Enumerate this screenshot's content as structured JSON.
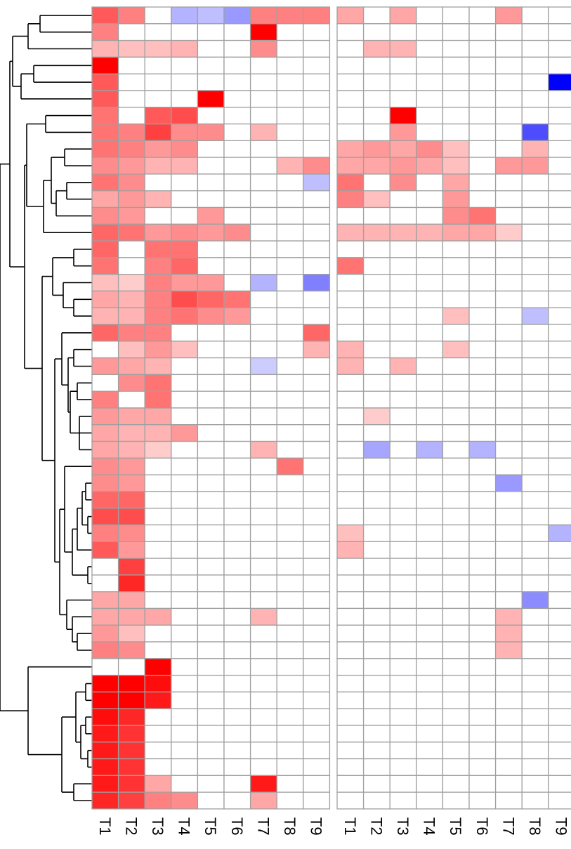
{
  "chart_data": {
    "type": "heatmap",
    "row_dendrogram": true,
    "grid": true,
    "colors": {
      "positive": "#ff0000",
      "negative": "#0000ff",
      "neutral": "#ffffff",
      "grid": "#a0a0a0"
    },
    "value_range": [
      -1,
      1
    ],
    "panels": [
      {
        "columns": [
          "T1",
          "T2",
          "T3",
          "T4",
          "T5",
          "T6",
          "T7",
          "T8",
          "T9"
        ],
        "values": [
          [
            0.65,
            0.5,
            0,
            -0.3,
            -0.25,
            -0.4,
            0.5,
            0.5,
            0.5
          ],
          [
            0.5,
            0,
            0,
            0,
            0,
            0,
            1,
            0,
            0
          ],
          [
            0.3,
            0.25,
            0.25,
            0.3,
            0,
            0,
            0.45,
            0,
            0
          ],
          [
            1,
            0,
            0,
            0,
            0,
            0,
            0,
            0,
            0
          ],
          [
            0.65,
            0,
            0,
            0,
            0,
            0,
            0,
            0,
            0
          ],
          [
            0.65,
            0,
            0,
            0,
            1,
            0,
            0,
            0,
            0
          ],
          [
            0.55,
            0,
            0.65,
            0.7,
            0,
            0,
            0,
            0,
            0
          ],
          [
            0.55,
            0.5,
            0.75,
            0.45,
            0.45,
            0,
            0.3,
            0,
            0
          ],
          [
            0.55,
            0.5,
            0.4,
            0.45,
            0,
            0,
            0,
            0,
            0
          ],
          [
            0.45,
            0.4,
            0.3,
            0.3,
            0,
            0,
            0,
            0.3,
            0.45
          ],
          [
            0.55,
            0.45,
            0,
            0,
            0,
            0,
            0,
            0,
            -0.25
          ],
          [
            0.35,
            0.4,
            0.3,
            0,
            0,
            0,
            0,
            0,
            0
          ],
          [
            0.45,
            0.4,
            0,
            0,
            0.4,
            0,
            0,
            0,
            0
          ],
          [
            0.6,
            0.55,
            0.4,
            0.45,
            0.4,
            0.45,
            0,
            0,
            0
          ],
          [
            0.6,
            0,
            0.55,
            0.55,
            0,
            0,
            0,
            0,
            0
          ],
          [
            0.55,
            0,
            0.5,
            0.6,
            0,
            0,
            0,
            0,
            0
          ],
          [
            0.25,
            0.2,
            0.5,
            0.4,
            0.4,
            0,
            -0.3,
            0,
            -0.5
          ],
          [
            0.35,
            0.3,
            0.5,
            0.7,
            0.6,
            0.55,
            0,
            0,
            0
          ],
          [
            0.3,
            0.3,
            0.5,
            0.55,
            0.45,
            0.4,
            0,
            0,
            0
          ],
          [
            0.6,
            0.5,
            0.5,
            0,
            0,
            0,
            0,
            0,
            0.6
          ],
          [
            0,
            0.25,
            0.4,
            0.25,
            0,
            0,
            0,
            0,
            0.3
          ],
          [
            0.4,
            0.35,
            0.3,
            0,
            0,
            0,
            -0.2,
            0,
            0
          ],
          [
            0,
            0.45,
            0.55,
            0,
            0,
            0,
            0,
            0,
            0
          ],
          [
            0.5,
            0,
            0.55,
            0,
            0,
            0,
            0,
            0,
            0
          ],
          [
            0.4,
            0.35,
            0.35,
            0,
            0,
            0,
            0,
            0,
            0
          ],
          [
            0.35,
            0.3,
            0.3,
            0.4,
            0,
            0,
            0,
            0,
            0
          ],
          [
            0.35,
            0.3,
            0.2,
            0,
            0,
            0,
            0.3,
            0,
            0
          ],
          [
            0.45,
            0.4,
            0,
            0,
            0,
            0,
            0,
            0.55,
            0
          ],
          [
            0.45,
            0.4,
            0,
            0,
            0,
            0,
            0,
            0,
            0
          ],
          [
            0.6,
            0.6,
            0,
            0,
            0,
            0,
            0,
            0,
            0
          ],
          [
            0.7,
            0.7,
            0,
            0,
            0,
            0,
            0,
            0,
            0
          ],
          [
            0.5,
            0.45,
            0,
            0,
            0,
            0,
            0,
            0,
            0
          ],
          [
            0.65,
            0.4,
            0,
            0,
            0,
            0,
            0,
            0,
            0
          ],
          [
            0,
            0.75,
            0,
            0,
            0,
            0,
            0,
            0,
            0
          ],
          [
            0,
            0.85,
            0,
            0,
            0,
            0,
            0,
            0,
            0
          ],
          [
            0.35,
            0.35,
            0,
            0,
            0,
            0,
            0,
            0,
            0
          ],
          [
            0.35,
            0.35,
            0.35,
            0,
            0,
            0,
            0.3,
            0,
            0
          ],
          [
            0.4,
            0.25,
            0,
            0,
            0,
            0,
            0,
            0,
            0
          ],
          [
            0.5,
            0.45,
            0,
            0,
            0,
            0,
            0,
            0,
            0
          ],
          [
            0,
            0,
            1,
            0,
            0,
            0,
            0,
            0,
            0
          ],
          [
            1,
            1,
            0.95,
            0,
            0,
            0,
            0,
            0,
            0
          ],
          [
            1,
            1,
            0.9,
            0,
            0,
            0,
            0,
            0,
            0
          ],
          [
            0.95,
            0.85,
            0,
            0,
            0,
            0,
            0,
            0,
            0
          ],
          [
            0.9,
            0.8,
            0,
            0,
            0,
            0,
            0,
            0,
            0
          ],
          [
            0.9,
            0.8,
            0,
            0,
            0,
            0,
            0,
            0,
            0
          ],
          [
            0.9,
            0.8,
            0,
            0,
            0,
            0,
            0,
            0,
            0
          ],
          [
            0.9,
            0.8,
            0.35,
            0,
            0,
            0,
            0.9,
            0,
            0
          ],
          [
            0.85,
            0.75,
            0.5,
            0.45,
            0,
            0,
            0.35,
            0,
            0
          ]
        ]
      },
      {
        "columns": [
          "T1",
          "T2",
          "T3",
          "T4",
          "T5",
          "T6",
          "T7",
          "T8",
          "T9"
        ],
        "values": [
          [
            0.35,
            0,
            0.35,
            0,
            0,
            0,
            0.4,
            0,
            0
          ],
          [
            0,
            0,
            0,
            0,
            0,
            0,
            0,
            0,
            0
          ],
          [
            0,
            0.3,
            0.3,
            0,
            0,
            0,
            0,
            0,
            0
          ],
          [
            0,
            0,
            0,
            0,
            0,
            0,
            0,
            0,
            0
          ],
          [
            0,
            0,
            0,
            0,
            0,
            0,
            0,
            0,
            -1
          ],
          [
            0,
            0,
            0,
            0,
            0,
            0,
            0,
            0,
            0
          ],
          [
            0,
            0,
            1,
            0,
            0,
            0,
            0,
            0,
            0
          ],
          [
            0,
            0,
            0.4,
            0,
            0,
            0,
            0,
            -0.7,
            0
          ],
          [
            0.35,
            0.4,
            0.35,
            0.45,
            0.25,
            0,
            0,
            0.3,
            0
          ],
          [
            0.35,
            0.35,
            0.4,
            0.35,
            0.25,
            0,
            0.4,
            0.4,
            0
          ],
          [
            0.55,
            0,
            0.45,
            0,
            0.35,
            0,
            0,
            0,
            0
          ],
          [
            0.5,
            0.25,
            0,
            0,
            0.4,
            0,
            0,
            0,
            0
          ],
          [
            0,
            0,
            0,
            0,
            0.45,
            0.55,
            0,
            0,
            0
          ],
          [
            0.3,
            0.3,
            0.3,
            0.3,
            0.35,
            0.35,
            0.2,
            0,
            0
          ],
          [
            0,
            0,
            0,
            0,
            0,
            0,
            0,
            0,
            0
          ],
          [
            0.55,
            0,
            0,
            0,
            0,
            0,
            0,
            0,
            0
          ],
          [
            0,
            0,
            0,
            0,
            0,
            0,
            0,
            0,
            0
          ],
          [
            0,
            0,
            0,
            0,
            0,
            0,
            0,
            0,
            0
          ],
          [
            0,
            0,
            0,
            0,
            0.25,
            0,
            0,
            -0.25,
            0
          ],
          [
            0,
            0,
            0,
            0,
            0,
            0,
            0,
            0,
            0
          ],
          [
            0.3,
            0,
            0,
            0,
            0.25,
            0,
            0,
            0,
            0
          ],
          [
            0.3,
            0,
            0.3,
            0,
            0,
            0,
            0,
            0,
            0
          ],
          [
            0,
            0,
            0,
            0,
            0,
            0,
            0,
            0,
            0
          ],
          [
            0,
            0,
            0,
            0,
            0,
            0,
            0,
            0,
            0
          ],
          [
            0,
            0.2,
            0,
            0,
            0,
            0,
            0,
            0,
            0
          ],
          [
            0,
            0,
            0,
            0,
            0,
            0,
            0,
            0,
            0
          ],
          [
            0,
            -0.35,
            0,
            -0.3,
            0,
            -0.3,
            0,
            0,
            0
          ],
          [
            0,
            0,
            0,
            0,
            0,
            0,
            0,
            0,
            0
          ],
          [
            0,
            0,
            0,
            0,
            0,
            0,
            -0.4,
            0,
            0
          ],
          [
            0,
            0,
            0,
            0,
            0,
            0,
            0,
            0,
            0
          ],
          [
            0,
            0,
            0,
            0,
            0,
            0,
            0,
            0,
            0
          ],
          [
            0.25,
            0,
            0,
            0,
            0,
            0,
            0,
            0,
            -0.3
          ],
          [
            0.3,
            0,
            0,
            0,
            0,
            0,
            0,
            0,
            0
          ],
          [
            0,
            0,
            0,
            0,
            0,
            0,
            0,
            0,
            0
          ],
          [
            0,
            0,
            0,
            0,
            0,
            0,
            0,
            0,
            0
          ],
          [
            0,
            0,
            0,
            0,
            0,
            0,
            0,
            -0.45,
            0
          ],
          [
            0,
            0,
            0,
            0,
            0,
            0,
            0.3,
            0,
            0
          ],
          [
            0,
            0,
            0,
            0,
            0,
            0,
            0.3,
            0,
            0
          ],
          [
            0,
            0,
            0,
            0,
            0,
            0,
            0.3,
            0,
            0
          ],
          [
            0,
            0,
            0,
            0,
            0,
            0,
            0,
            0,
            0
          ],
          [
            0,
            0,
            0,
            0,
            0,
            0,
            0,
            0,
            0
          ],
          [
            0,
            0,
            0,
            0,
            0,
            0,
            0,
            0,
            0
          ],
          [
            0,
            0,
            0,
            0,
            0,
            0,
            0,
            0,
            0
          ],
          [
            0,
            0,
            0,
            0,
            0,
            0,
            0,
            0,
            0
          ],
          [
            0,
            0,
            0,
            0,
            0,
            0,
            0,
            0,
            0
          ],
          [
            0,
            0,
            0,
            0,
            0,
            0,
            0,
            0,
            0
          ],
          [
            0,
            0,
            0,
            0,
            0,
            0,
            0,
            0,
            0
          ],
          [
            0,
            0,
            0,
            0,
            0,
            0,
            0,
            0,
            0
          ]
        ]
      }
    ]
  }
}
